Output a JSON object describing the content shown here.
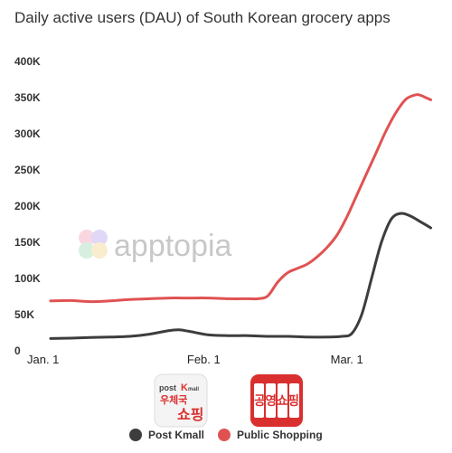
{
  "chart_data": {
    "type": "line",
    "title": "Daily active users (DAU) of South Korean grocery apps",
    "xlabel": "",
    "ylabel": "",
    "x_ticks": [
      "Jan. 1",
      "Feb. 1",
      "Mar. 1"
    ],
    "y_ticks": [
      "0",
      "50K",
      "100K",
      "150K",
      "200K",
      "250K",
      "300K",
      "350K",
      "400K"
    ],
    "ylim": [
      0,
      400000
    ],
    "xlim": [
      1,
      79
    ],
    "x_tick_days": [
      1,
      32,
      61
    ],
    "grid": false,
    "legend_position": "bottom",
    "colors": {
      "post_kmall": "#3d3d3d",
      "public_shopping": "#e05252"
    },
    "series": [
      {
        "name": "Post Kmall",
        "x": [
          1,
          5,
          9,
          13,
          17,
          21,
          25,
          27,
          29,
          33,
          37,
          41,
          45,
          49,
          53,
          57,
          60,
          62,
          64,
          66,
          68,
          70,
          72,
          74,
          76,
          78
        ],
        "y": [
          17000,
          17500,
          18500,
          19000,
          20000,
          23000,
          28000,
          29000,
          27000,
          22000,
          21000,
          21000,
          20000,
          20000,
          19000,
          19000,
          20000,
          24000,
          50000,
          100000,
          150000,
          182000,
          190000,
          186000,
          178000,
          170000
        ]
      },
      {
        "name": "Public Shopping",
        "x": [
          1,
          5,
          9,
          13,
          17,
          21,
          25,
          29,
          33,
          37,
          41,
          43,
          45,
          47,
          49,
          51,
          53,
          55,
          57,
          59,
          61,
          63,
          65,
          67,
          69,
          71,
          73,
          75,
          76,
          77,
          78
        ],
        "y": [
          69000,
          69500,
          68000,
          69000,
          71000,
          72000,
          73000,
          73000,
          73000,
          72000,
          72000,
          72000,
          76000,
          95000,
          108000,
          114000,
          120000,
          130000,
          143000,
          160000,
          185000,
          215000,
          245000,
          275000,
          305000,
          330000,
          348000,
          354000,
          353000,
          350000,
          347000
        ]
      }
    ]
  },
  "watermark": "apptopia",
  "apps": [
    {
      "name": "Post Kmall",
      "icon_text_top": "post",
      "icon_text_k": "K",
      "icon_text_mall": "mall",
      "icon_text_mid": "우체국",
      "icon_text_bottom": "쇼핑"
    },
    {
      "name": "Public Shopping",
      "icon_text": "공영쇼핑"
    }
  ]
}
